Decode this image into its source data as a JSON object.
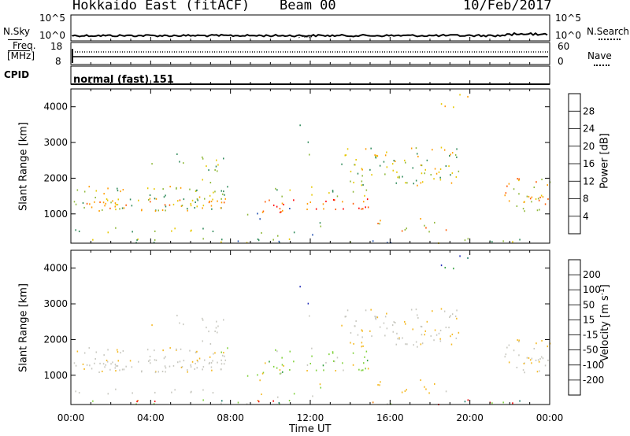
{
  "header": {
    "title": "Hokkaido East (fitACF)",
    "beam": "Beam 00",
    "date": "10/Feb/2017"
  },
  "top_panels": {
    "nsky_label": "N.Sky",
    "nsky_ticks": [
      "10^5",
      "10^0"
    ],
    "nsearch_label": "N.Search",
    "nsearch_ticks": [
      "10^5",
      "10^0"
    ],
    "freq_label_1": "Freq.",
    "freq_label_2": "[MHz]",
    "freq_ticks": [
      "18",
      "8"
    ],
    "nave_label": "Nave",
    "nave_ticks": [
      "60",
      "0"
    ],
    "cpid_label": "CPID",
    "cpid_value": "normal (fast) 151"
  },
  "chart_data": [
    {
      "type": "heatmap",
      "ylabel": "Slant Range [km]",
      "ylim": [
        180,
        4500
      ],
      "yticks": [
        "4000",
        "3000",
        "2000",
        "1000"
      ],
      "xticks": [
        "00:00",
        "04:00",
        "08:00",
        "12:00",
        "16:00",
        "20:00",
        "00:00"
      ],
      "colorbar_label": "Power [dB]",
      "colorbar_ticks": [
        "28",
        "24",
        "20",
        "16",
        "12",
        "8",
        "4"
      ],
      "colorbar_colors": [
        "#ff0000",
        "#ff5a00",
        "#ff9c00",
        "#e7c800",
        "#8fb83a",
        "#2f8a5a",
        "#1f4fb0",
        "#0000ff"
      ]
    },
    {
      "type": "heatmap",
      "ylabel": "Slant Range [km]",
      "ylim": [
        180,
        4500
      ],
      "yticks": [
        "4000",
        "3000",
        "2000",
        "1000"
      ],
      "xticks": [
        "00:00",
        "04:00",
        "08:00",
        "12:00",
        "16:00",
        "20:00",
        "00:00"
      ],
      "xlabel": "Time UT",
      "colorbar_label": "Velocity [m s",
      "colorbar_sup": "-1",
      "colorbar_suffix": "]",
      "colorbar_ticks": [
        "200",
        "100",
        "50",
        "15",
        "-15",
        "-50",
        "-100",
        "-200"
      ],
      "colorbar_colors": [
        "#1e2ab8",
        "#1a7a6a",
        "#2e9e3a",
        "#7fd13a",
        "#c8c8c0",
        "#f4b820",
        "#f28010",
        "#f04010",
        "#ee0000"
      ]
    }
  ]
}
